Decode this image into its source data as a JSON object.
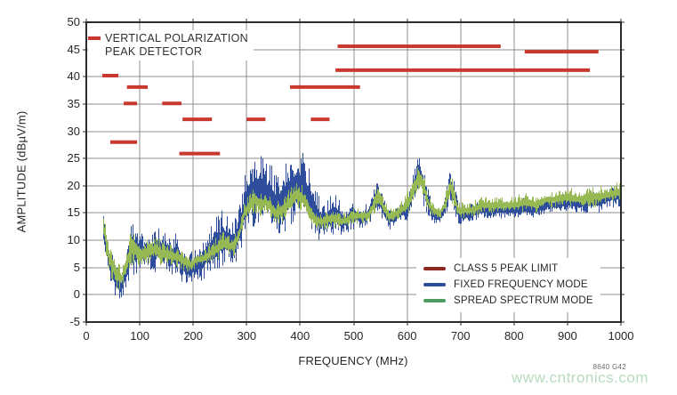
{
  "page": {
    "figure_id": "8640 G42",
    "watermark": "www.cntronics.com"
  },
  "chart_data": {
    "type": "line",
    "subtype": "EMI spectrum with limit mask",
    "annotation": {
      "line1": "VERTICAL POLARIZATION",
      "line2": "PEAK DETECTOR"
    },
    "xlabel": "FREQUENCY (MHz)",
    "ylabel": "AMPLITUDE (dBµV/m)",
    "xlim": [
      0,
      1000
    ],
    "ylim": [
      -5,
      50
    ],
    "xticks": [
      0,
      100,
      200,
      300,
      400,
      500,
      600,
      700,
      800,
      900,
      1000
    ],
    "yticks": [
      50,
      45,
      40,
      35,
      30,
      25,
      20,
      15,
      10,
      5,
      0,
      -5
    ],
    "grid": true,
    "legend_position": "inside-bottom-right",
    "noise_seed": 1337,
    "colors": {
      "limit": "#c8382e",
      "legend_limit": "#8b2a21",
      "fixed": "#2e4d9c",
      "legend_fixed": "#2e4d9c",
      "spread": "#97b954",
      "legend_spread": "#4f9c60",
      "grid": "#8f8f8f",
      "frame": "#2b2b2b",
      "text": "#262626",
      "watermark": "#b7dcc0"
    },
    "limit_series": {
      "name": "CLASS 5 PEAK LIMIT",
      "segments": [
        [
          30,
          60,
          40.2
        ],
        [
          45,
          95,
          28
        ],
        [
          70,
          95,
          35.1
        ],
        [
          76,
          115,
          38.1
        ],
        [
          142,
          178,
          35.1
        ],
        [
          174,
          250,
          25.9
        ],
        [
          180,
          235,
          32.2
        ],
        [
          300,
          335,
          32.2
        ],
        [
          381,
          512,
          38.1
        ],
        [
          420,
          455,
          32.2
        ],
        [
          466,
          942,
          41.2
        ],
        [
          470,
          775,
          45.6
        ],
        [
          820,
          958,
          44.6
        ]
      ]
    },
    "series": [
      {
        "name": "FIXED FREQUENCY MODE",
        "envelope": [
          [
            30,
            8,
            16
          ],
          [
            35,
            6,
            15
          ],
          [
            40,
            3,
            12
          ],
          [
            45,
            1,
            10
          ],
          [
            50,
            0,
            8
          ],
          [
            55,
            -1,
            6
          ],
          [
            60,
            -1,
            5
          ],
          [
            65,
            -1,
            4
          ],
          [
            70,
            0,
            6
          ],
          [
            75,
            1,
            8
          ],
          [
            80,
            2,
            12
          ],
          [
            85,
            3,
            15
          ],
          [
            90,
            3,
            14
          ],
          [
            95,
            4,
            12
          ],
          [
            100,
            4,
            11
          ],
          [
            110,
            4,
            12
          ],
          [
            120,
            4,
            12
          ],
          [
            130,
            4,
            13
          ],
          [
            140,
            4,
            12
          ],
          [
            150,
            4,
            12
          ],
          [
            160,
            3,
            11
          ],
          [
            170,
            3,
            12
          ],
          [
            178,
            2,
            10
          ],
          [
            185,
            2,
            8
          ],
          [
            195,
            2,
            8
          ],
          [
            205,
            2,
            9
          ],
          [
            215,
            2,
            10
          ],
          [
            225,
            3,
            12
          ],
          [
            235,
            3,
            14
          ],
          [
            245,
            4,
            15
          ],
          [
            255,
            4,
            16
          ],
          [
            265,
            5,
            15
          ],
          [
            275,
            5,
            14
          ],
          [
            285,
            7,
            16
          ],
          [
            295,
            10,
            22
          ],
          [
            305,
            12,
            25
          ],
          [
            315,
            12,
            26
          ],
          [
            325,
            13,
            26
          ],
          [
            335,
            12,
            25
          ],
          [
            345,
            12,
            24
          ],
          [
            355,
            11,
            22
          ],
          [
            365,
            11,
            23
          ],
          [
            375,
            12,
            25
          ],
          [
            385,
            13,
            26
          ],
          [
            395,
            14,
            27
          ],
          [
            405,
            13,
            26
          ],
          [
            415,
            12,
            24
          ],
          [
            425,
            11,
            21
          ],
          [
            435,
            10,
            18
          ],
          [
            445,
            10,
            17
          ],
          [
            455,
            11,
            18
          ],
          [
            465,
            11,
            19
          ],
          [
            475,
            11,
            17
          ],
          [
            485,
            11,
            16
          ],
          [
            495,
            12,
            17
          ],
          [
            505,
            12,
            17
          ],
          [
            515,
            12,
            16
          ],
          [
            525,
            12,
            17
          ],
          [
            535,
            14,
            19
          ],
          [
            545,
            15,
            21
          ],
          [
            555,
            13,
            18
          ],
          [
            565,
            12,
            16
          ],
          [
            575,
            12,
            16
          ],
          [
            585,
            13,
            17
          ],
          [
            595,
            13,
            18
          ],
          [
            605,
            14,
            21
          ],
          [
            615,
            16,
            25
          ],
          [
            622,
            18,
            27.5
          ],
          [
            630,
            16,
            24
          ],
          [
            640,
            14,
            19
          ],
          [
            650,
            13,
            16
          ],
          [
            660,
            13,
            15
          ],
          [
            670,
            14,
            18
          ],
          [
            680,
            16,
            24
          ],
          [
            688,
            15,
            21
          ],
          [
            695,
            13,
            17
          ],
          [
            705,
            13,
            16
          ],
          [
            720,
            13,
            17
          ],
          [
            740,
            14,
            17
          ],
          [
            760,
            14,
            17
          ],
          [
            780,
            14,
            17
          ],
          [
            800,
            14,
            17
          ],
          [
            820,
            14,
            18
          ],
          [
            840,
            14,
            17
          ],
          [
            860,
            15,
            18
          ],
          [
            880,
            15,
            18
          ],
          [
            900,
            15,
            19
          ],
          [
            920,
            15,
            18
          ],
          [
            940,
            15,
            19
          ],
          [
            960,
            15,
            19
          ],
          [
            980,
            16,
            20
          ],
          [
            1000,
            16,
            21
          ]
        ]
      },
      {
        "name": "SPREAD SPECTRUM MODE",
        "envelope": [
          [
            30,
            10,
            15
          ],
          [
            35,
            8,
            14
          ],
          [
            40,
            5,
            11
          ],
          [
            45,
            3,
            9
          ],
          [
            50,
            2,
            8
          ],
          [
            55,
            1,
            7
          ],
          [
            60,
            1,
            6
          ],
          [
            65,
            1,
            5
          ],
          [
            70,
            2,
            7
          ],
          [
            75,
            3,
            8
          ],
          [
            80,
            4,
            11
          ],
          [
            85,
            5,
            13
          ],
          [
            90,
            5,
            12
          ],
          [
            95,
            5,
            11
          ],
          [
            100,
            5,
            10
          ],
          [
            110,
            5,
            10
          ],
          [
            120,
            6,
            10
          ],
          [
            130,
            6,
            11
          ],
          [
            140,
            5,
            10
          ],
          [
            150,
            5,
            10
          ],
          [
            160,
            5,
            9
          ],
          [
            170,
            5,
            9
          ],
          [
            178,
            4,
            9
          ],
          [
            185,
            4,
            8
          ],
          [
            195,
            4,
            7
          ],
          [
            205,
            5,
            8
          ],
          [
            215,
            5,
            8
          ],
          [
            225,
            5,
            9
          ],
          [
            235,
            6,
            10
          ],
          [
            245,
            6,
            11
          ],
          [
            255,
            7,
            12
          ],
          [
            265,
            7,
            11
          ],
          [
            275,
            7,
            11
          ],
          [
            285,
            9,
            13
          ],
          [
            295,
            13,
            17
          ],
          [
            305,
            14,
            19
          ],
          [
            315,
            15,
            20
          ],
          [
            325,
            14,
            19
          ],
          [
            335,
            15,
            19
          ],
          [
            345,
            14,
            18
          ],
          [
            355,
            13,
            17
          ],
          [
            365,
            13,
            18
          ],
          [
            375,
            14,
            19
          ],
          [
            385,
            15,
            20
          ],
          [
            395,
            16,
            21
          ],
          [
            405,
            15,
            20
          ],
          [
            415,
            14,
            18
          ],
          [
            425,
            12,
            16
          ],
          [
            435,
            12,
            15
          ],
          [
            445,
            12,
            15
          ],
          [
            455,
            12,
            16
          ],
          [
            465,
            12,
            16
          ],
          [
            475,
            12,
            15
          ],
          [
            485,
            12,
            15
          ],
          [
            495,
            13,
            16
          ],
          [
            505,
            13,
            16
          ],
          [
            515,
            13,
            16
          ],
          [
            525,
            13,
            16
          ],
          [
            535,
            14,
            18
          ],
          [
            545,
            16,
            21
          ],
          [
            555,
            14,
            18
          ],
          [
            565,
            13,
            16
          ],
          [
            575,
            13,
            16
          ],
          [
            585,
            14,
            17
          ],
          [
            595,
            14,
            18
          ],
          [
            605,
            15,
            20
          ],
          [
            615,
            18,
            23
          ],
          [
            622,
            19,
            24
          ],
          [
            630,
            17,
            23
          ],
          [
            640,
            15,
            18
          ],
          [
            650,
            14,
            17
          ],
          [
            660,
            14,
            16
          ],
          [
            670,
            15,
            18
          ],
          [
            680,
            17,
            23
          ],
          [
            688,
            16,
            20
          ],
          [
            695,
            14,
            17
          ],
          [
            705,
            14,
            17
          ],
          [
            720,
            14,
            17
          ],
          [
            740,
            15,
            18
          ],
          [
            760,
            15,
            18
          ],
          [
            780,
            15,
            18
          ],
          [
            800,
            15,
            18
          ],
          [
            820,
            15,
            19
          ],
          [
            840,
            15,
            18
          ],
          [
            860,
            16,
            19
          ],
          [
            880,
            16,
            19
          ],
          [
            900,
            16,
            20
          ],
          [
            920,
            16,
            19
          ],
          [
            940,
            16,
            20
          ],
          [
            960,
            16,
            20
          ],
          [
            980,
            17,
            20
          ],
          [
            1000,
            17,
            21
          ]
        ]
      }
    ]
  }
}
